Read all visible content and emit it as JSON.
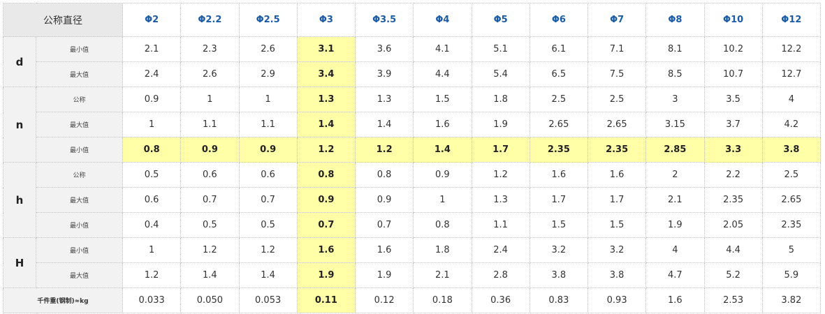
{
  "table": {
    "header_label": "公称直径",
    "diameters": [
      "Φ2",
      "Φ2.2",
      "Φ2.5",
      "Φ3",
      "Φ3.5",
      "Φ4",
      "Φ5",
      "Φ6",
      "Φ7",
      "Φ8",
      "Φ10",
      "Φ12"
    ],
    "highlight_column_index": 3,
    "highlight_row": "n-最小值",
    "highlight_color": "#ffffa8",
    "header_text_color": "#1a5ca8",
    "groups": [
      {
        "symbol": "d",
        "rows": [
          {
            "label": "最小值",
            "values": [
              "2.1",
              "2.3",
              "2.6",
              "3.1",
              "3.6",
              "4.1",
              "5.1",
              "6.1",
              "7.1",
              "8.1",
              "10.2",
              "12.2"
            ]
          },
          {
            "label": "最大值",
            "values": [
              "2.4",
              "2.6",
              "2.9",
              "3.4",
              "3.9",
              "4.4",
              "5.4",
              "6.5",
              "7.5",
              "8.5",
              "10.7",
              "12.7"
            ]
          }
        ]
      },
      {
        "symbol": "n",
        "rows": [
          {
            "label": "公称",
            "values": [
              "0.9",
              "1",
              "1",
              "1.3",
              "1.3",
              "1.5",
              "1.8",
              "2.5",
              "2.5",
              "3",
              "3.5",
              "4"
            ]
          },
          {
            "label": "最大值",
            "values": [
              "1",
              "1.1",
              "1.1",
              "1.4",
              "1.4",
              "1.6",
              "1.9",
              "2.65",
              "2.65",
              "3.15",
              "3.7",
              "4.2"
            ]
          },
          {
            "label": "最小值",
            "values": [
              "0.8",
              "0.9",
              "0.9",
              "1.2",
              "1.2",
              "1.4",
              "1.7",
              "2.35",
              "2.35",
              "2.85",
              "3.3",
              "3.8"
            ],
            "highlight": true
          }
        ]
      },
      {
        "symbol": "h",
        "rows": [
          {
            "label": "公称",
            "values": [
              "0.5",
              "0.6",
              "0.6",
              "0.8",
              "0.8",
              "0.9",
              "1.2",
              "1.6",
              "1.6",
              "2",
              "2.2",
              "2.5"
            ]
          },
          {
            "label": "最大值",
            "values": [
              "0.6",
              "0.7",
              "0.7",
              "0.9",
              "0.9",
              "1",
              "1.3",
              "1.7",
              "1.7",
              "2.1",
              "2.35",
              "2.65"
            ]
          },
          {
            "label": "最小值",
            "values": [
              "0.4",
              "0.5",
              "0.5",
              "0.7",
              "0.7",
              "0.8",
              "1.1",
              "1.5",
              "1.5",
              "1.9",
              "2.05",
              "2.35"
            ]
          }
        ]
      },
      {
        "symbol": "H",
        "rows": [
          {
            "label": "最小值",
            "values": [
              "1",
              "1.2",
              "1.2",
              "1.6",
              "1.6",
              "1.8",
              "2.4",
              "3.2",
              "3.2",
              "4",
              "4.4",
              "5"
            ]
          },
          {
            "label": "最大值",
            "values": [
              "1.2",
              "1.4",
              "1.4",
              "1.9",
              "1.9",
              "2.1",
              "2.8",
              "3.8",
              "3.8",
              "4.7",
              "5.2",
              "5.9"
            ]
          }
        ]
      }
    ],
    "weight_row": {
      "label": "千件重(钢制)≈kg",
      "values": [
        "0.033",
        "0.050",
        "0.053",
        "0.11",
        "0.12",
        "0.18",
        "0.36",
        "0.83",
        "0.93",
        "1.6",
        "2.53",
        "3.82"
      ]
    }
  }
}
